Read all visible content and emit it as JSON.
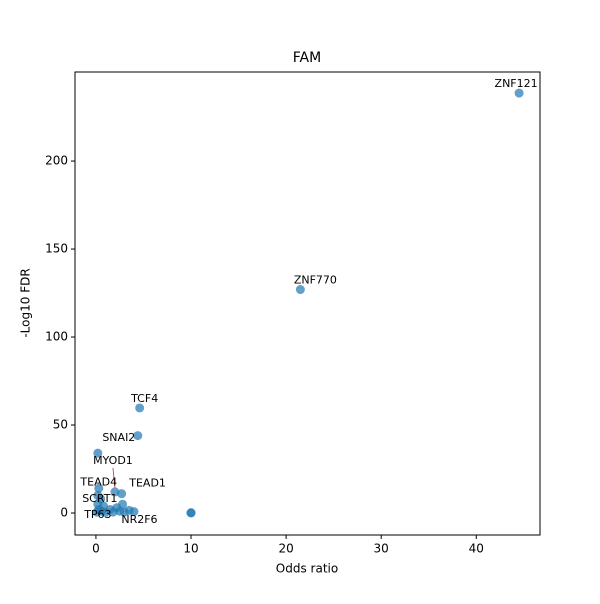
{
  "chart_data": {
    "type": "scatter",
    "title": "FAM",
    "x_label": "Odds ratio",
    "y_label": "-Log10 FDR",
    "x": [
      44.5,
      21.5,
      4.6,
      4.4,
      0.2,
      2.0,
      0.3,
      2.7,
      0.2,
      0.1,
      3.0,
      10,
      10,
      0.5,
      0.8,
      1.5,
      2.2,
      2.5,
      3.5,
      4.0,
      1.0,
      0.2,
      0.6,
      1.8,
      2.8,
      0.3
    ],
    "y": [
      238.6,
      127,
      59.7,
      44,
      34,
      12,
      14,
      11,
      5,
      0.5,
      0.5,
      0,
      0.2,
      8,
      4,
      2,
      3,
      1,
      1.5,
      0.8,
      0.3,
      10,
      1,
      0.5,
      5,
      2
    ],
    "labels": [
      "ZNF121",
      "ZNF770",
      "TCF4",
      null,
      "SNAI2",
      "MYOD1",
      "TEAD4",
      "TEAD1",
      "SCRT1",
      "TP63",
      "NR2F6",
      null,
      null,
      null,
      null,
      null,
      null,
      null,
      null,
      null,
      null,
      null,
      null,
      null,
      null,
      null
    ],
    "color": "#1f77b4",
    "xlim": [
      -2.2,
      46.7
    ],
    "ylim": [
      -12.5,
      250.6
    ],
    "xticks": [
      0,
      10,
      20,
      30,
      40
    ],
    "yticks": [
      0,
      50,
      100,
      150,
      200
    ]
  }
}
